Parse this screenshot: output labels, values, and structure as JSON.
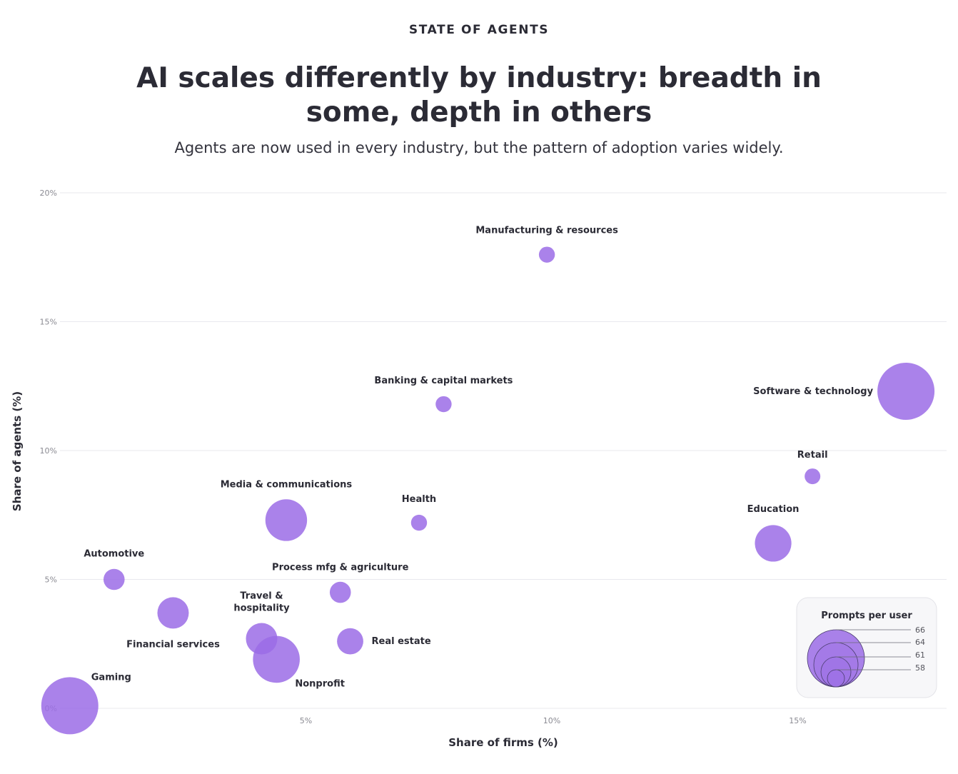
{
  "eyebrow": "STATE OF AGENTS",
  "title": "AI scales differently by industry: breadth in some, depth in others",
  "subtitle": "Agents are now used in every industry, but the pattern of adoption varies widely.",
  "colors": {
    "bubble": "#9b6ce6",
    "bubble_stroke": "#8a5cdc",
    "grid": "#e9e9ee",
    "legend_bg": "#f7f7f9"
  },
  "chart_data": {
    "type": "scatter",
    "xlabel": "Share of firms (%)",
    "ylabel": "Share of agents (%)",
    "xlim": [
      0,
      17.5
    ],
    "ylim": [
      0,
      20
    ],
    "xticks": [
      5,
      10,
      15
    ],
    "xtick_labels": [
      "5%",
      "10%",
      "15%"
    ],
    "yticks": [
      0,
      5,
      10,
      15,
      20
    ],
    "ytick_labels": [
      "0%",
      "5%",
      "10%",
      "15%",
      "20%"
    ],
    "grid": true,
    "size_legend": {
      "title": "Prompts per user",
      "placement": "bottom-right",
      "values": [
        66,
        64,
        61,
        58
      ]
    },
    "points": [
      {
        "name": "Manufacturing & resources",
        "x": 9.9,
        "y": 17.6,
        "size": 58
      },
      {
        "name": "Banking & capital markets",
        "x": 7.8,
        "y": 11.8,
        "size": 58
      },
      {
        "name": "Software & technology",
        "x": 17.2,
        "y": 12.3,
        "size": 66
      },
      {
        "name": "Retail",
        "x": 15.3,
        "y": 9.0,
        "size": 57
      },
      {
        "name": "Media & communications",
        "x": 4.6,
        "y": 7.3,
        "size": 63
      },
      {
        "name": "Health",
        "x": 7.3,
        "y": 7.2,
        "size": 58
      },
      {
        "name": "Education",
        "x": 14.5,
        "y": 6.4,
        "size": 62
      },
      {
        "name": "Automotive",
        "x": 1.1,
        "y": 5.0,
        "size": 59
      },
      {
        "name": "Process mfg & agriculture",
        "x": 5.7,
        "y": 4.5,
        "size": 59
      },
      {
        "name": "Travel & hospitality",
        "x": 4.1,
        "y": 2.7,
        "size": 61
      },
      {
        "name": "Financial services",
        "x": 2.3,
        "y": 3.7,
        "size": 61
      },
      {
        "name": "Real estate",
        "x": 5.9,
        "y": 2.6,
        "size": 60
      },
      {
        "name": "Nonprofit",
        "x": 4.4,
        "y": 1.9,
        "size": 64
      },
      {
        "name": "Gaming",
        "x": 0.2,
        "y": 0.1,
        "size": 66
      }
    ]
  }
}
